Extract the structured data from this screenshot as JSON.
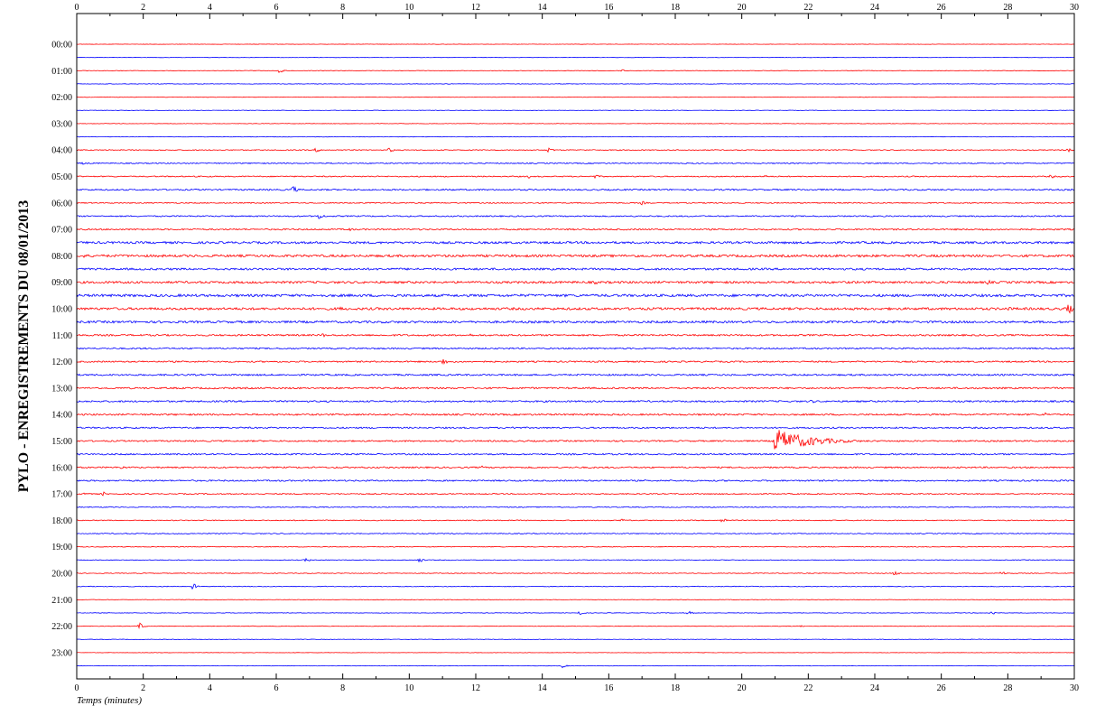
{
  "chart_data": {
    "type": "line",
    "title": "PYLO - ENREGISTREMENTS DU 08/01/2013",
    "xlabel": "Temps (minutes)",
    "xlim": [
      0,
      30
    ],
    "x_ticks": [
      "0",
      "2",
      "4",
      "6",
      "8",
      "10",
      "12",
      "14",
      "16",
      "18",
      "20",
      "22",
      "24",
      "26",
      "28",
      "30"
    ],
    "row_labels": [
      "00:00",
      "01:00",
      "02:00",
      "03:00",
      "04:00",
      "05:00",
      "06:00",
      "07:00",
      "08:00",
      "09:00",
      "10:00",
      "11:00",
      "12:00",
      "13:00",
      "14:00",
      "15:00",
      "16:00",
      "17:00",
      "18:00",
      "19:00",
      "20:00",
      "21:00",
      "22:00",
      "23:00"
    ],
    "traces_per_hour": 2,
    "minutes_per_trace": 30,
    "colors": {
      "first_half_hour": "#ff0000",
      "second_half_hour": "#0000ff",
      "axis": "#000000"
    },
    "noise_levels": [
      0.2,
      0.2,
      0.3,
      0.3,
      0.25,
      0.25,
      0.25,
      0.25,
      0.5,
      0.6,
      0.6,
      0.8,
      0.6,
      0.7,
      0.8,
      1.2,
      1.3,
      1.1,
      1.2,
      1.4,
      1.3,
      1.2,
      0.9,
      0.8,
      0.8,
      0.9,
      0.9,
      0.9,
      0.9,
      0.8,
      0.8,
      0.8,
      0.8,
      0.8,
      0.6,
      0.5,
      0.5,
      0.5,
      0.4,
      0.4,
      0.4,
      0.4,
      0.3,
      0.3,
      0.3,
      0.3,
      0.2,
      0.2
    ],
    "events": [
      {
        "trace": 2,
        "minute": 6.1,
        "amplitude": 3
      },
      {
        "trace": 2,
        "minute": 16.4,
        "amplitude": 1.5
      },
      {
        "trace": 8,
        "minute": 7.2,
        "amplitude": 3
      },
      {
        "trace": 8,
        "minute": 9.4,
        "amplitude": 3
      },
      {
        "trace": 8,
        "minute": 14.2,
        "amplitude": 3.5
      },
      {
        "trace": 8,
        "minute": 29.8,
        "amplitude": 3
      },
      {
        "trace": 9,
        "minute": 0.2,
        "amplitude": 2.5
      },
      {
        "trace": 10,
        "minute": 13.6,
        "amplitude": 2
      },
      {
        "trace": 10,
        "minute": 15.6,
        "amplitude": 2.5
      },
      {
        "trace": 10,
        "minute": 20.7,
        "amplitude": 2
      },
      {
        "trace": 10,
        "minute": 29.3,
        "amplitude": 2.5
      },
      {
        "trace": 11,
        "minute": 6.5,
        "amplitude": 5
      },
      {
        "trace": 11,
        "minute": 11.2,
        "amplitude": 2.5
      },
      {
        "trace": 12,
        "minute": 17.0,
        "amplitude": 2.5
      },
      {
        "trace": 13,
        "minute": 7.3,
        "amplitude": 4.5
      },
      {
        "trace": 14,
        "minute": 8.2,
        "amplitude": 2
      },
      {
        "trace": 14,
        "minute": 27.3,
        "amplitude": 2.5
      },
      {
        "trace": 15,
        "minute": 17.3,
        "amplitude": 2.5
      },
      {
        "trace": 16,
        "minute": 0.2,
        "amplitude": 3
      },
      {
        "trace": 16,
        "minute": 16.9,
        "amplitude": 3.5
      },
      {
        "trace": 18,
        "minute": 15.6,
        "amplitude": 2.5
      },
      {
        "trace": 18,
        "minute": 23.5,
        "amplitude": 2.5
      },
      {
        "trace": 18,
        "minute": 27.4,
        "amplitude": 3
      },
      {
        "trace": 20,
        "minute": 7.9,
        "amplitude": 3.5
      },
      {
        "trace": 20,
        "minute": 28.0,
        "amplitude": 3
      },
      {
        "trace": 20,
        "minute": 29.8,
        "amplitude": 8
      },
      {
        "trace": 22,
        "minute": 7.4,
        "amplitude": 2.5
      },
      {
        "trace": 22,
        "minute": 11.8,
        "amplitude": 2.5
      },
      {
        "trace": 24,
        "minute": 11.0,
        "amplitude": 5
      },
      {
        "trace": 27,
        "minute": 22.1,
        "amplitude": 2.5
      },
      {
        "trace": 28,
        "minute": 29.1,
        "amplitude": 3
      },
      {
        "trace": 29,
        "minute": 13.1,
        "amplitude": 3
      },
      {
        "trace": 30,
        "minute": 21.0,
        "amplitude": 14,
        "duration": 3.0
      },
      {
        "trace": 32,
        "minute": 1.3,
        "amplitude": 3
      },
      {
        "trace": 32,
        "minute": 12.2,
        "amplitude": 2
      },
      {
        "trace": 34,
        "minute": 0.2,
        "amplitude": 4
      },
      {
        "trace": 34,
        "minute": 0.8,
        "amplitude": 2.5
      },
      {
        "trace": 36,
        "minute": 16.4,
        "amplitude": 2.5
      },
      {
        "trace": 36,
        "minute": 19.4,
        "amplitude": 4
      },
      {
        "trace": 39,
        "minute": 6.9,
        "amplitude": 2.5
      },
      {
        "trace": 39,
        "minute": 10.3,
        "amplitude": 3
      },
      {
        "trace": 40,
        "minute": 24.6,
        "amplitude": 3
      },
      {
        "trace": 40,
        "minute": 27.8,
        "amplitude": 3
      },
      {
        "trace": 41,
        "minute": 3.5,
        "amplitude": 4
      },
      {
        "trace": 43,
        "minute": 15.1,
        "amplitude": 3
      },
      {
        "trace": 43,
        "minute": 18.4,
        "amplitude": 2.5
      },
      {
        "trace": 43,
        "minute": 27.5,
        "amplitude": 3
      },
      {
        "trace": 44,
        "minute": 1.9,
        "amplitude": 4
      },
      {
        "trace": 44,
        "minute": 21.7,
        "amplitude": 2
      },
      {
        "trace": 47,
        "minute": 14.6,
        "amplitude": 2.5
      }
    ]
  }
}
